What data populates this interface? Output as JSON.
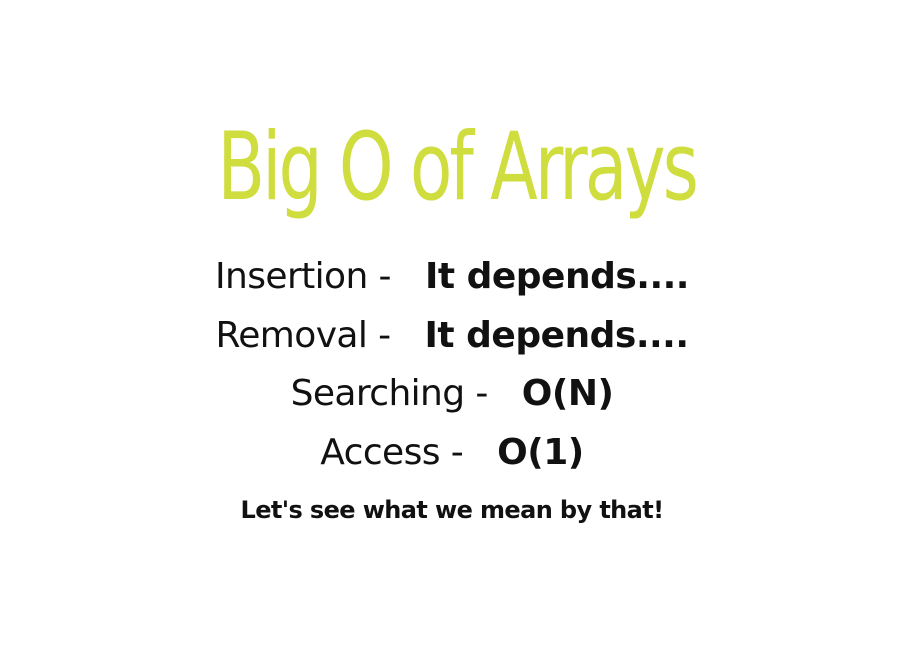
{
  "slide": {
    "title": "Big O of Arrays",
    "title_color": "#cfdd3f",
    "rows": [
      {
        "label": "Insertion -",
        "value": "It depends...."
      },
      {
        "label": "Removal -",
        "value": "It depends...."
      },
      {
        "label": "Searching -",
        "value": "O(N)"
      },
      {
        "label": "Access -",
        "value": "O(1)"
      }
    ],
    "footer": "Let's see what we mean by that!"
  }
}
